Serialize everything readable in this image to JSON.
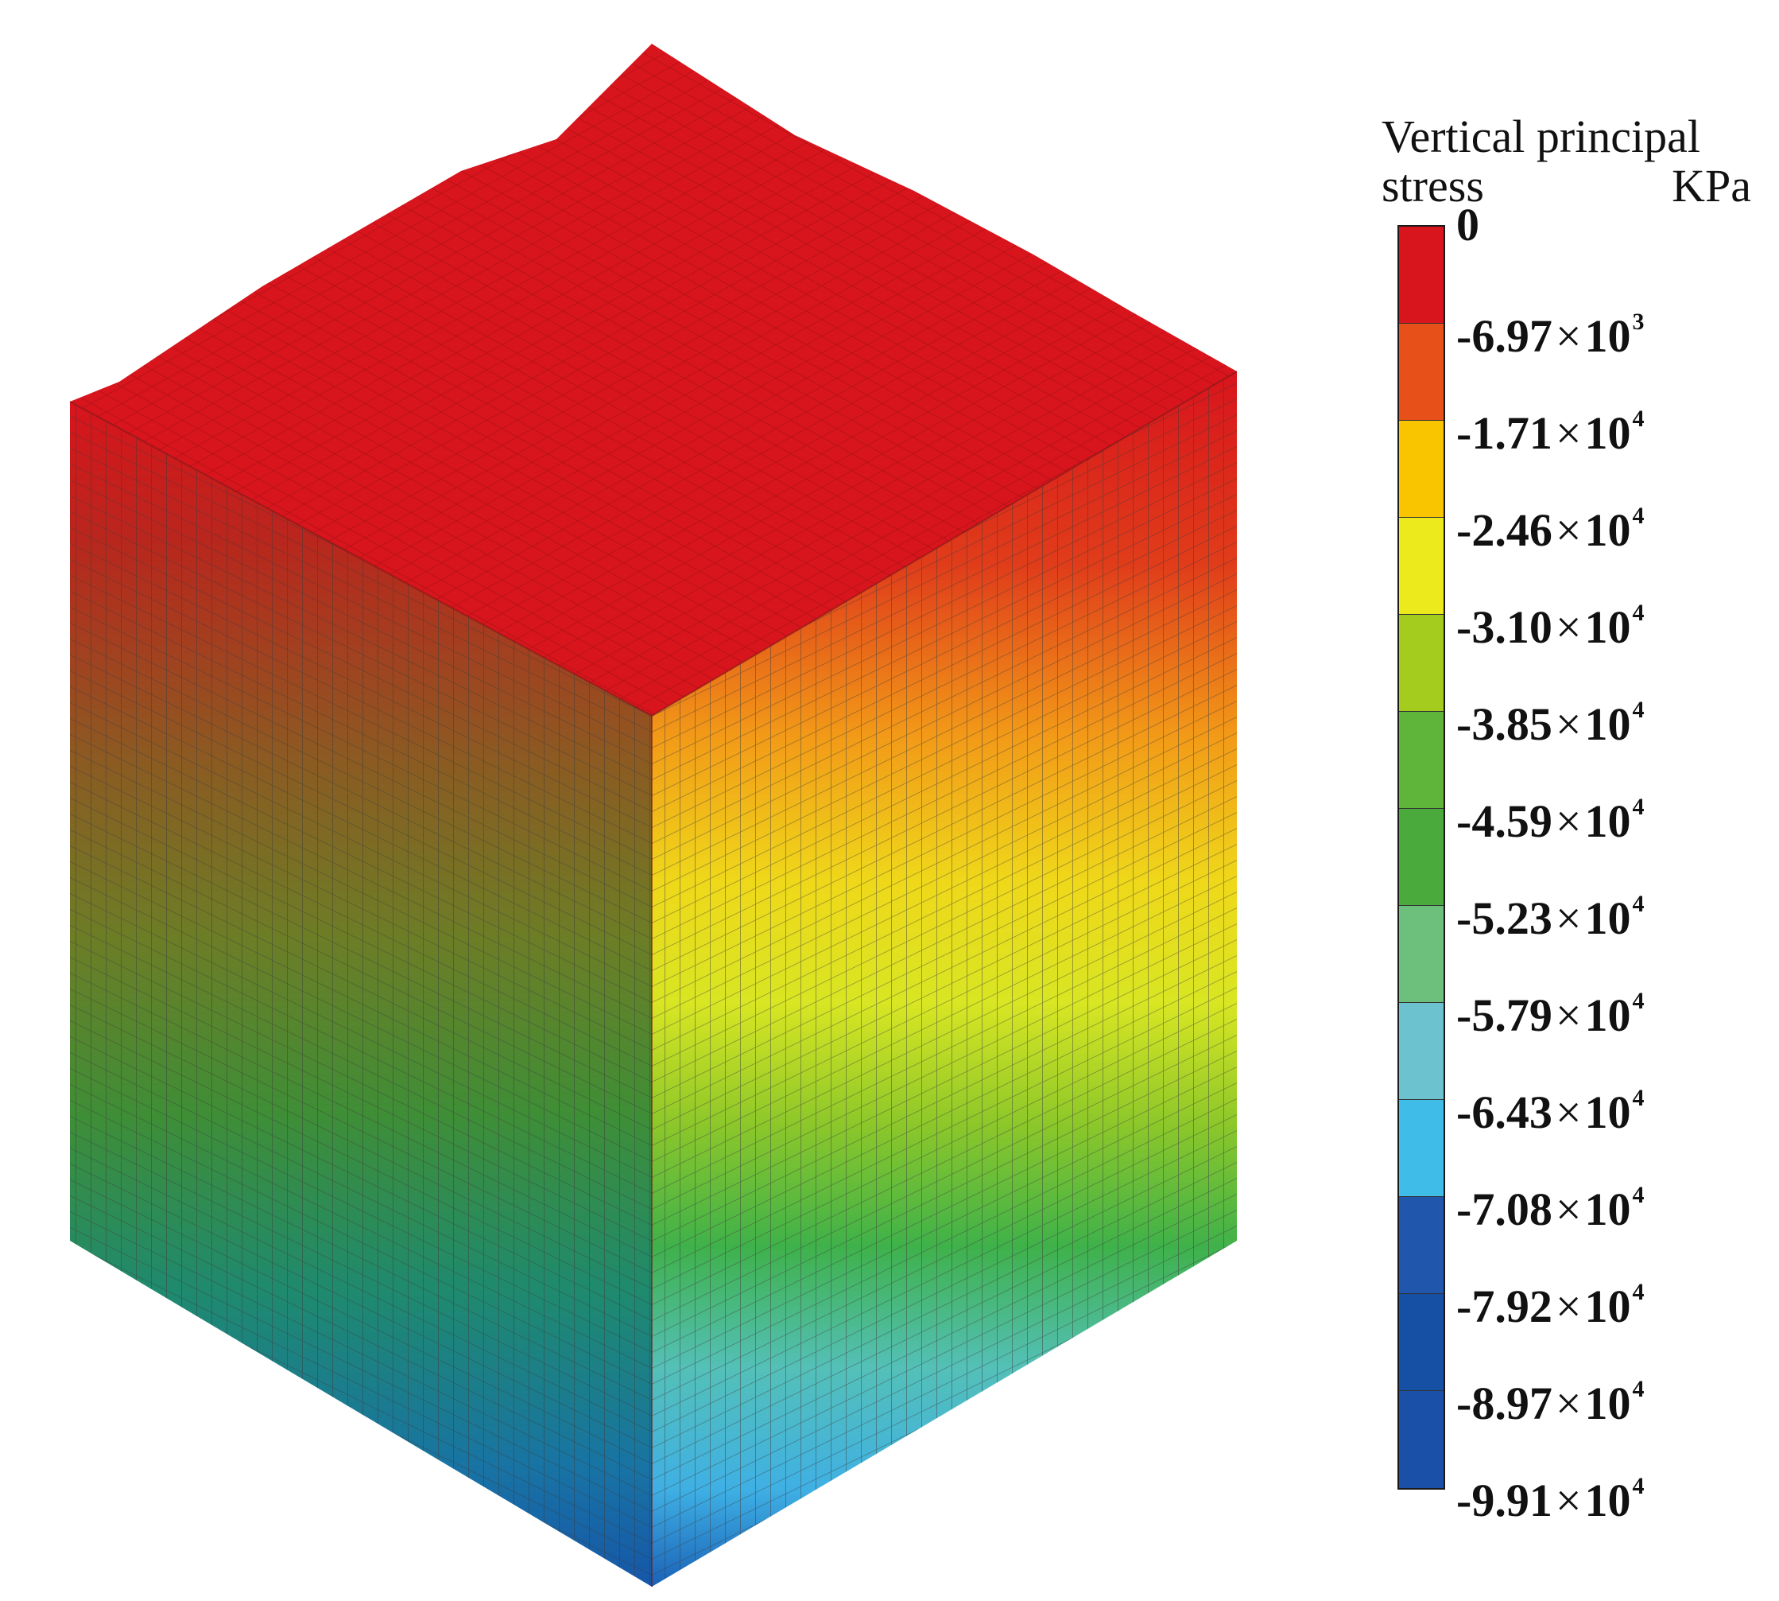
{
  "legend": {
    "title_line1": "Vertical principal",
    "title_line2_word": "stress",
    "title_line2_unit": "KPa",
    "levels": [
      {
        "mantissa": "0",
        "exponent": "",
        "color": "#d8141c"
      },
      {
        "mantissa": "-6.97",
        "exponent": "3",
        "color": "#e8501a"
      },
      {
        "mantissa": "-1.71",
        "exponent": "4",
        "color": "#f8c500"
      },
      {
        "mantissa": "-2.46",
        "exponent": "4",
        "color": "#ecea1c"
      },
      {
        "mantissa": "-3.10",
        "exponent": "4",
        "color": "#a3cc1e"
      },
      {
        "mantissa": "-3.85",
        "exponent": "4",
        "color": "#5fb53a"
      },
      {
        "mantissa": "-4.59",
        "exponent": "4",
        "color": "#4aab3c"
      },
      {
        "mantissa": "-5.23",
        "exponent": "4",
        "color": "#6dbf7c"
      },
      {
        "mantissa": "-5.79",
        "exponent": "4",
        "color": "#6cc2cf"
      },
      {
        "mantissa": "-6.43",
        "exponent": "4",
        "color": "#3fbce8"
      },
      {
        "mantissa": "-7.08",
        "exponent": "4",
        "color": "#2056ab"
      },
      {
        "mantissa": "-7.92",
        "exponent": "4",
        "color": "#1550a4"
      },
      {
        "mantissa": "-8.97",
        "exponent": "4",
        "color": ""
      },
      {
        "mantissa": "-9.91",
        "exponent": "4",
        "color": ""
      }
    ],
    "times_symbol": "×",
    "base": "10"
  },
  "model": {
    "top_color": "#d8141c",
    "left_face_colors": [
      "#d8141c",
      "#9c3a1e",
      "#7a6a22",
      "#5a8a2a",
      "#2f8a4a",
      "#1e7a8a",
      "#1760a8"
    ],
    "right_face_colors": [
      "#d8141c",
      "#e85a18",
      "#f3c51a",
      "#e3e82a",
      "#4cb84c",
      "#5ec8d0",
      "#3aa8e0",
      "#1a62b8"
    ]
  }
}
